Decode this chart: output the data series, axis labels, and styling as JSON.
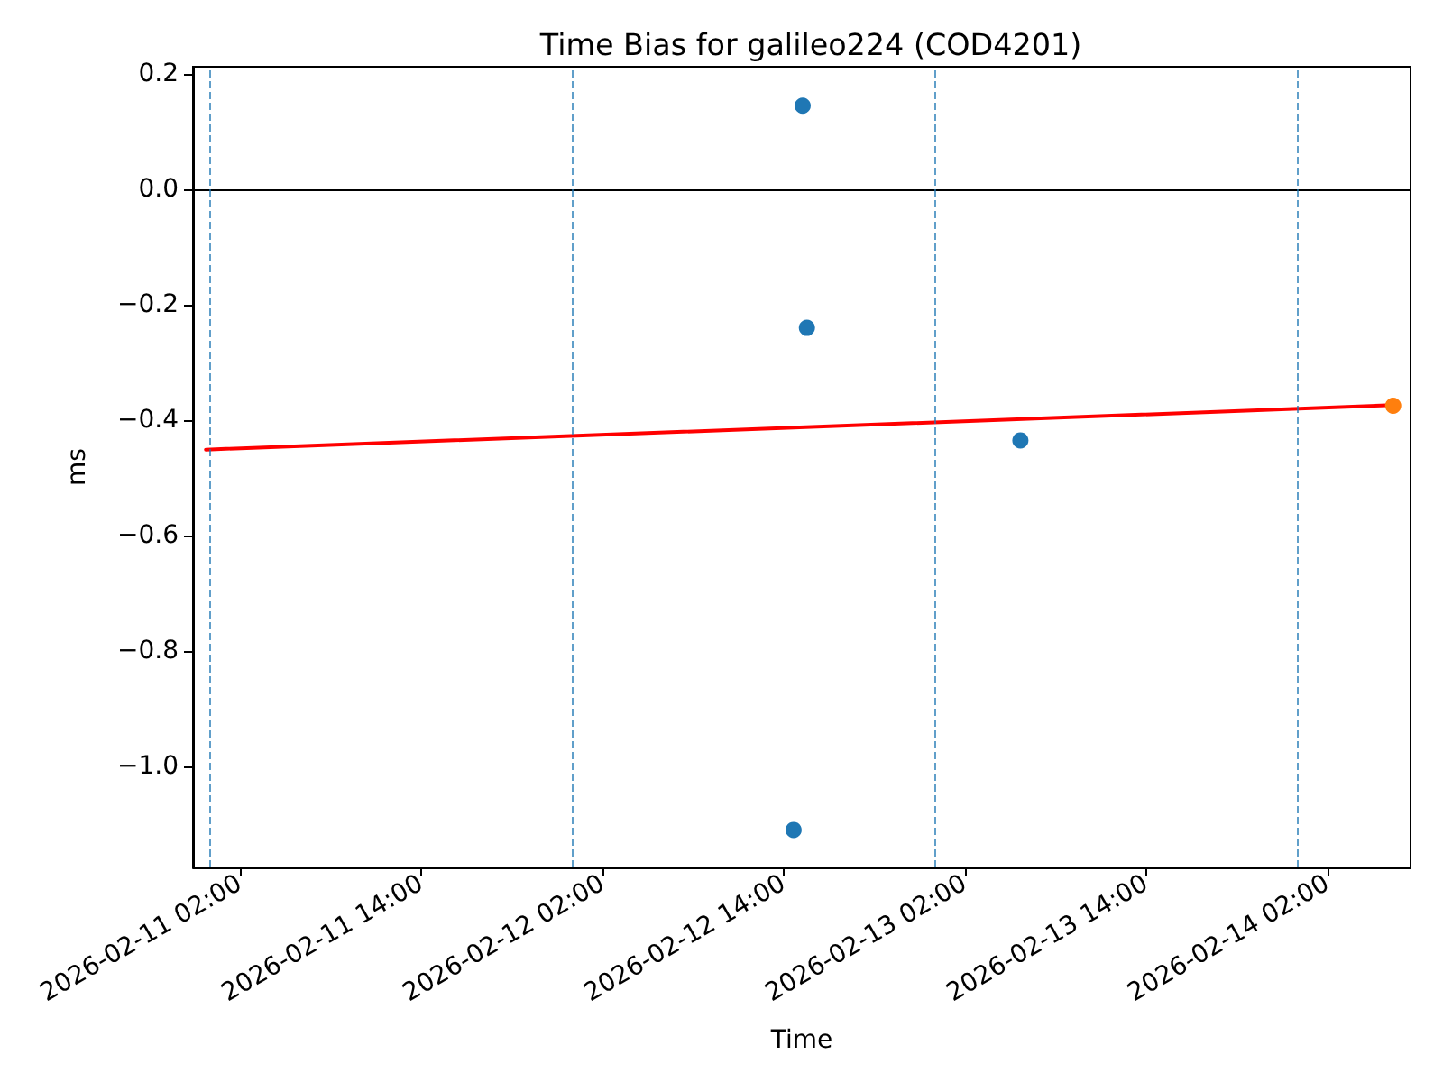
{
  "chart_data": {
    "type": "scatter",
    "title": "Time Bias for galileo224 (COD4201)",
    "xlabel": "Time",
    "ylabel": "ms",
    "xlim": [
      "2026-02-10T22:54",
      "2026-02-14T07:31"
    ],
    "xticks": [
      {
        "value": "2026-02-11T02:00",
        "label": "2026-02-11 02:00"
      },
      {
        "value": "2026-02-11T14:00",
        "label": "2026-02-11 14:00"
      },
      {
        "value": "2026-02-12T02:00",
        "label": "2026-02-12 02:00"
      },
      {
        "value": "2026-02-12T14:00",
        "label": "2026-02-12 14:00"
      },
      {
        "value": "2026-02-13T02:00",
        "label": "2026-02-13 02:00"
      },
      {
        "value": "2026-02-13T14:00",
        "label": "2026-02-13 14:00"
      },
      {
        "value": "2026-02-14T02:00",
        "label": "2026-02-14 02:00"
      }
    ],
    "ylim": [
      -1.175,
      0.2125
    ],
    "yticks": [
      0.2,
      {
        "value": 0,
        "label": "0.0"
      },
      {
        "value": -0.2,
        "label": "−0.2"
      },
      {
        "value": -0.4,
        "label": "−0.4"
      },
      {
        "value": -0.6,
        "label": "−0.6"
      },
      {
        "value": -0.8,
        "label": "−0.8"
      },
      {
        "value": -1,
        "label": "−1.0"
      }
    ],
    "series": [
      {
        "type": "line",
        "color": "#ff0000",
        "marker": "none",
        "x": [
          "2026-02-10T23:45",
          "2026-02-14T06:20"
        ],
        "values": [
          -0.451,
          -0.374
        ]
      },
      {
        "color": "#1f77b4",
        "x": [
          "2026-02-12T14:40",
          "2026-02-12T15:16",
          "2026-02-12T15:33",
          "2026-02-13T05:41"
        ],
        "values": [
          -1.11,
          0.145,
          -0.24,
          -0.435
        ]
      },
      {
        "color": "#ff7f0e",
        "x": [
          "2026-02-14T06:22"
        ],
        "values": [
          -0.375
        ]
      }
    ],
    "ref_lines": [
      {
        "axis": "y",
        "value": 0,
        "color": "#000000",
        "line_style": "solid"
      },
      {
        "axis": "x",
        "value": "2026-02-11T00:00",
        "color": "#1f77b4",
        "line_style": "dashed"
      },
      {
        "axis": "x",
        "value": "2026-02-12T00:00",
        "color": "#1f77b4",
        "line_style": "dashed"
      },
      {
        "axis": "x",
        "value": "2026-02-13T00:00",
        "color": "#1f77b4",
        "line_style": "dashed"
      },
      {
        "axis": "x",
        "value": "2026-02-14T00:00",
        "color": "#1f77b4",
        "line_style": "dashed"
      }
    ],
    "marker": "circle",
    "grid": false
  }
}
